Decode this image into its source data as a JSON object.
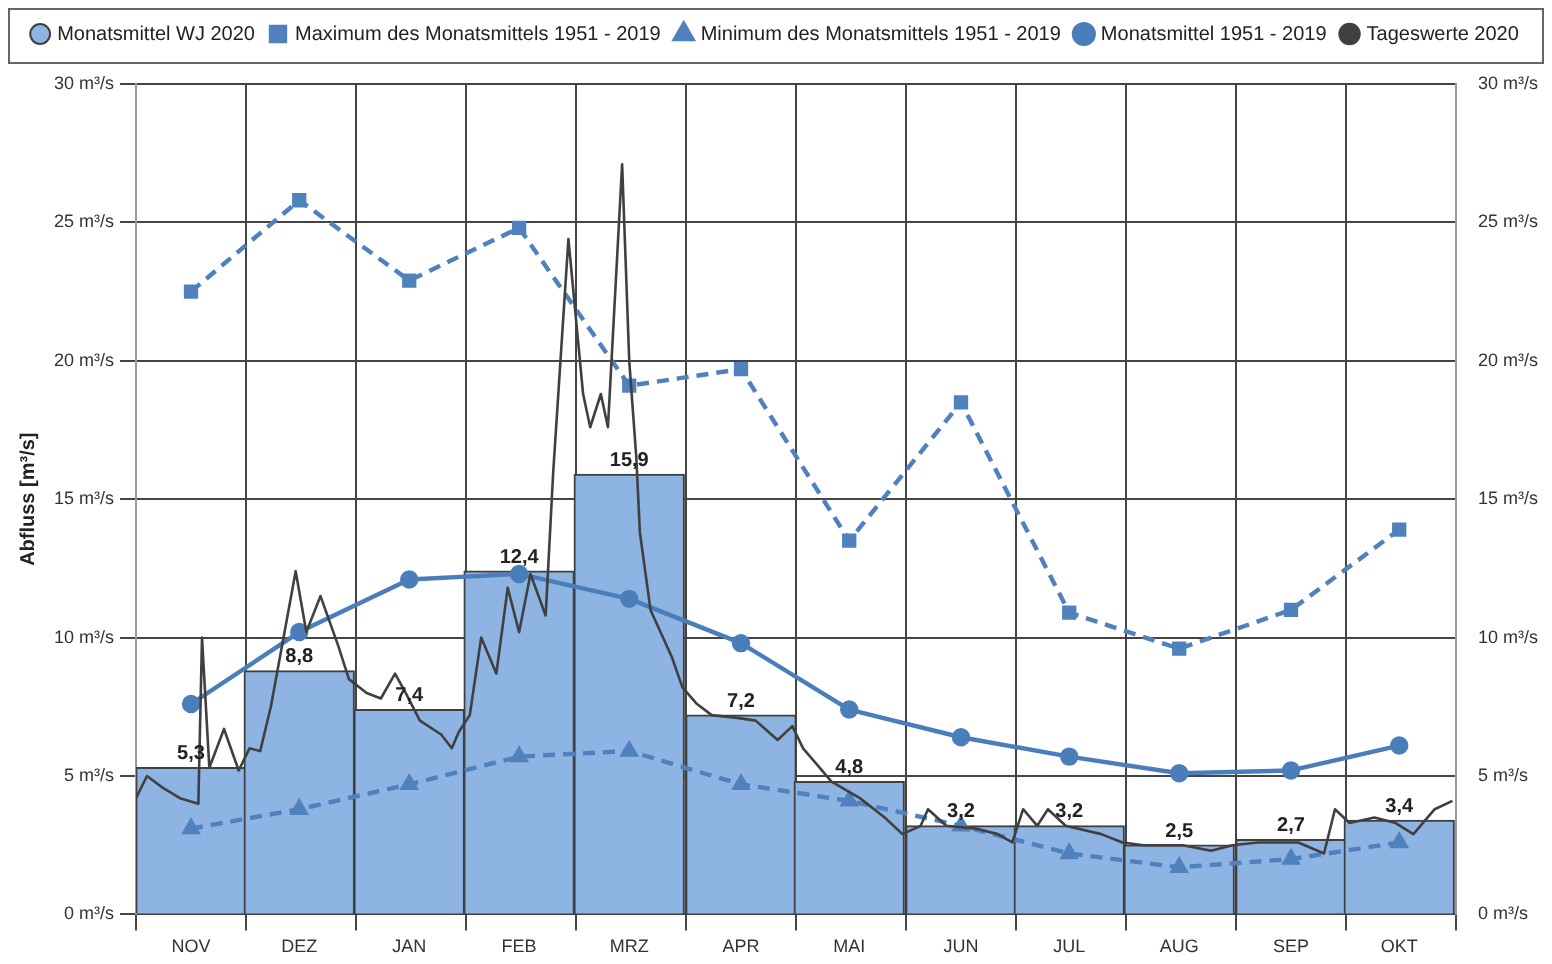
{
  "chart_data": {
    "type": "bar",
    "ylabel": "Abfluss [m³/s]",
    "x": [
      "2019-11-16",
      "2019-12-16",
      "2020-01-16",
      "2020-02-15",
      "2020-03-16",
      "2020-04-16",
      "2020-05-16",
      "2020-06-16",
      "2020-07-16",
      "2020-08-16",
      "2020-09-16",
      "2020-10-16"
    ],
    "series": [
      {
        "name": "Monatsmittel WJ 2020",
        "color": "#8eb4e3",
        "values": [
          5.3,
          8.8,
          7.4,
          12.4,
          15.9,
          7.2,
          4.8,
          3.2,
          3.2,
          2.5,
          2.7,
          3.4
        ],
        "value_labels": [
          "5,3",
          "8,8",
          "7,4",
          "12,4",
          "15,9",
          "7,2",
          "4,8",
          "3,2",
          "3,2",
          "2,5",
          "2,7",
          "3,4"
        ]
      },
      {
        "name": "Maximum des Monatsmittels 1951 - 2019",
        "type": "line",
        "color": "#4f81bd",
        "line_style": "dashed",
        "marker": "square",
        "values": [
          22.5,
          25.8,
          22.9,
          24.8,
          19.1,
          19.7,
          13.5,
          18.5,
          10.9,
          9.6,
          11.0,
          13.9
        ]
      },
      {
        "name": "Minimum des Monatsmittels 1951 - 2019",
        "type": "line",
        "color": "#4f81bd",
        "line_style": "dashed",
        "marker": "triangle",
        "values": [
          3.1,
          3.8,
          4.7,
          5.7,
          5.9,
          4.7,
          4.1,
          3.2,
          2.2,
          1.7,
          2.0,
          2.6
        ]
      },
      {
        "name": "Monatsmittel 1951 - 2019",
        "type": "line",
        "color": "#4a7ebb",
        "line_style": "solid",
        "marker": "circle",
        "values": [
          7.6,
          10.2,
          12.1,
          12.3,
          11.4,
          9.8,
          7.4,
          6.4,
          5.7,
          5.1,
          5.2,
          6.1
        ]
      },
      {
        "name": "Tageswerte 2020",
        "type": "line",
        "color": "#404040",
        "line_style": "solid",
        "marker": "none",
        "x": [
          "2019-11-01",
          "2019-11-04",
          "2019-11-08",
          "2019-11-13",
          "2019-11-18",
          "2019-11-19",
          "2019-11-21",
          "2019-11-25",
          "2019-11-29",
          "2019-12-02",
          "2019-12-05",
          "2019-12-08",
          "2019-12-15",
          "2019-12-18",
          "2019-12-22",
          "2019-12-27",
          "2019-12-30",
          "2020-01-04",
          "2020-01-08",
          "2020-01-12",
          "2020-01-15",
          "2020-01-19",
          "2020-01-25",
          "2020-01-28",
          "2020-01-30",
          "2020-02-02",
          "2020-02-05",
          "2020-02-09",
          "2020-02-12",
          "2020-02-15",
          "2020-02-18",
          "2020-02-22",
          "2020-02-24",
          "2020-02-28",
          "2020-03-03",
          "2020-03-05",
          "2020-03-08",
          "2020-03-10",
          "2020-03-14",
          "2020-03-16",
          "2020-03-18",
          "2020-03-19",
          "2020-03-22",
          "2020-03-28",
          "2020-03-31",
          "2020-04-04",
          "2020-04-08",
          "2020-04-15",
          "2020-04-20",
          "2020-04-26",
          "2020-04-30",
          "2020-05-03",
          "2020-05-07",
          "2020-05-11",
          "2020-05-19",
          "2020-05-26",
          "2020-05-31",
          "2020-06-05",
          "2020-06-07",
          "2020-06-12",
          "2020-06-20",
          "2020-06-26",
          "2020-06-30",
          "2020-07-03",
          "2020-07-07",
          "2020-07-10",
          "2020-07-15",
          "2020-07-25",
          "2020-07-31",
          "2020-08-06",
          "2020-08-17",
          "2020-08-25",
          "2020-08-31",
          "2020-09-07",
          "2020-09-18",
          "2020-09-25",
          "2020-09-28",
          "2020-10-02",
          "2020-10-09",
          "2020-10-15",
          "2020-10-20",
          "2020-10-26",
          "2020-10-31"
        ],
        "values": [
          4.2,
          5.0,
          4.6,
          4.2,
          4.0,
          10.0,
          5.3,
          6.7,
          5.2,
          6.0,
          5.9,
          7.5,
          12.4,
          10.2,
          11.5,
          9.7,
          8.5,
          8.0,
          7.8,
          8.7,
          8.0,
          7.0,
          6.5,
          6.0,
          6.6,
          7.2,
          10.0,
          8.7,
          11.8,
          10.2,
          12.3,
          10.8,
          16.0,
          24.4,
          18.8,
          17.6,
          18.8,
          17.6,
          27.1,
          20.0,
          16.5,
          13.8,
          11.0,
          9.3,
          8.2,
          7.6,
          7.2,
          7.1,
          7.0,
          6.3,
          6.8,
          6.0,
          5.4,
          4.8,
          4.2,
          3.5,
          2.9,
          3.2,
          3.8,
          3.2,
          3.1,
          2.9,
          2.6,
          3.8,
          3.2,
          3.8,
          3.2,
          2.9,
          2.6,
          2.5,
          2.5,
          2.3,
          2.5,
          2.6,
          2.6,
          2.2,
          3.8,
          3.3,
          3.5,
          3.3,
          2.9,
          3.8,
          4.1
        ]
      }
    ],
    "xlim": [
      "2019-11-01",
      "2020-11-01"
    ],
    "xticks": [
      {
        "value": "2019-11-01",
        "label": null
      },
      {
        "value": "2019-11-16",
        "label": "NOV"
      },
      {
        "value": "2019-12-01",
        "label": null
      },
      {
        "value": "2019-12-16",
        "label": "DEZ"
      },
      {
        "value": "2020-01-01",
        "label": null
      },
      {
        "value": "2020-01-16",
        "label": "JAN"
      },
      {
        "value": "2020-02-01",
        "label": null
      },
      {
        "value": "2020-02-15",
        "label": "FEB"
      },
      {
        "value": "2020-03-01",
        "label": null
      },
      {
        "value": "2020-03-16",
        "label": "MRZ"
      },
      {
        "value": "2020-04-01",
        "label": null
      },
      {
        "value": "2020-04-16",
        "label": "APR"
      },
      {
        "value": "2020-05-01",
        "label": null
      },
      {
        "value": "2020-05-16",
        "label": "MAI"
      },
      {
        "value": "2020-06-01",
        "label": null
      },
      {
        "value": "2020-06-16",
        "label": "JUN"
      },
      {
        "value": "2020-07-01",
        "label": null
      },
      {
        "value": "2020-07-16",
        "label": "JUL"
      },
      {
        "value": "2020-08-01",
        "label": null
      },
      {
        "value": "2020-08-16",
        "label": "AUG"
      },
      {
        "value": "2020-09-01",
        "label": null
      },
      {
        "value": "2020-09-16",
        "label": "SEP"
      },
      {
        "value": "2020-10-01",
        "label": null
      },
      {
        "value": "2020-10-16",
        "label": "OKT"
      },
      {
        "value": "2020-11-01",
        "label": null
      }
    ],
    "ylim": [
      0,
      30
    ],
    "yticks": [
      {
        "value": 0,
        "label": "0 m³/s"
      },
      {
        "value": 5,
        "label": "5 m³/s"
      },
      {
        "value": 10,
        "label": "10 m³/s"
      },
      {
        "value": 15,
        "label": "15 m³/s"
      },
      {
        "value": 20,
        "label": "20 m³/s"
      },
      {
        "value": 25,
        "label": "25 m³/s"
      },
      {
        "value": 30,
        "label": "30 m³/s"
      }
    ],
    "y2lim": [
      0,
      30
    ],
    "y2ticks": [
      {
        "value": 0,
        "label": "0 m³/s"
      },
      {
        "value": 5,
        "label": "5 m³/s"
      },
      {
        "value": 10,
        "label": "10 m³/s"
      },
      {
        "value": 15,
        "label": "15 m³/s"
      },
      {
        "value": 20,
        "label": "20 m³/s"
      },
      {
        "value": 25,
        "label": "25 m³/s"
      },
      {
        "value": 30,
        "label": "30 m³/s"
      }
    ],
    "grid": true,
    "legend": "top"
  }
}
